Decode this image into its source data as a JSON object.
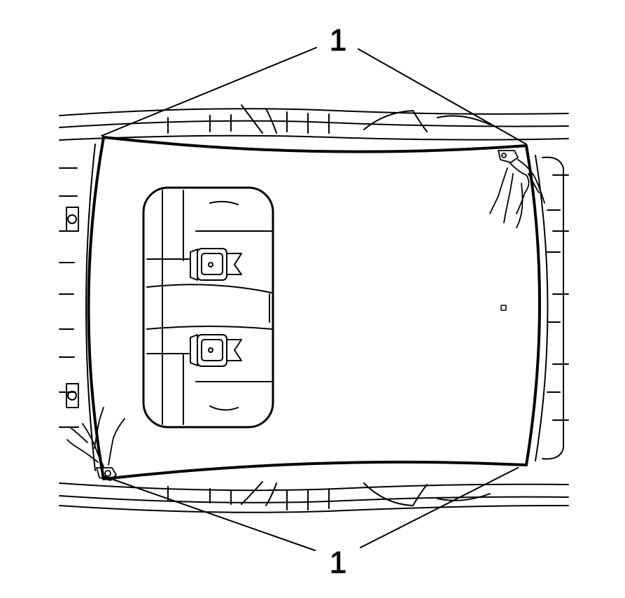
{
  "diagram": {
    "callouts": [
      {
        "label": "1"
      },
      {
        "label": "1"
      }
    ],
    "colors": {
      "line": "#000000",
      "background": "#ffffff"
    }
  }
}
